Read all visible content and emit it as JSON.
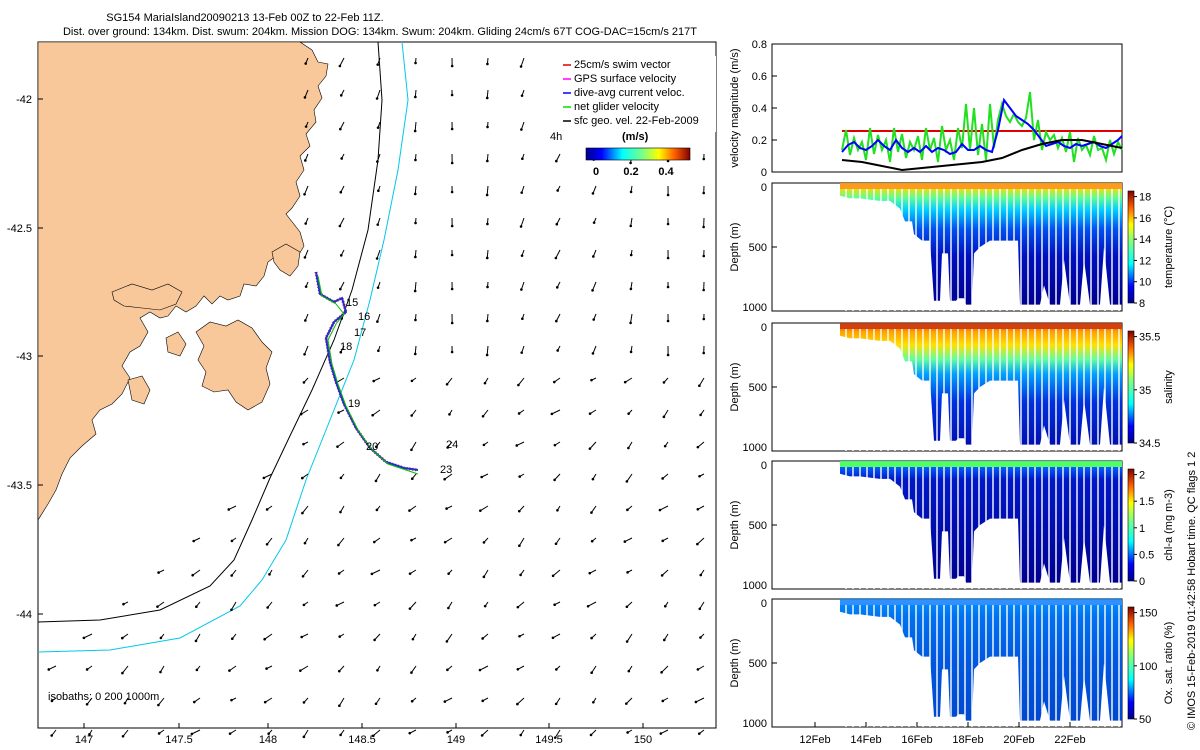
{
  "header": {
    "line1": "SG154 MariaIsland20090213 13-Feb 00Z to 22-Feb 11Z.",
    "line2": "Dist. over ground: 134km. Dist. swum: 204km. Mission DOG: 134km. Swum: 204km. Gliding 24cm/s 67T COG-DAC=15cm/s 217T"
  },
  "map": {
    "x_ticks": [
      "147",
      "147.5",
      "148",
      "148.5",
      "149",
      "149.5",
      "150"
    ],
    "y_ticks": [
      "-42",
      "-42.5",
      "-43",
      "-43.5",
      "-44"
    ],
    "day_labels": [
      "15",
      "16",
      "17",
      "18",
      "19",
      "20",
      "24",
      "23"
    ],
    "isobaths_label": "isobaths: 0   200  1000m",
    "colors": {
      "land": "#f8c89a",
      "iso200": "#000000",
      "iso1000": "#00c8e8",
      "track": "#2030d0",
      "swim": "#e00000"
    },
    "legend": {
      "items": [
        {
          "label": "25cm/s swim vector",
          "color": "#e00000"
        },
        {
          "label": "GPS surface velocity",
          "color": "#ff00ff"
        },
        {
          "label": "dive-avg current veloc.",
          "color": "#0000ff"
        },
        {
          "label": "net glider velocity",
          "color": "#00e000"
        },
        {
          "label": "sfc geo. vel. 22-Feb-2009",
          "color": "#000000"
        }
      ],
      "scale_label": "4h",
      "units": "(m/s)",
      "cb_ticks": [
        "0",
        "0.2",
        "0.4"
      ]
    }
  },
  "velocity_panel": {
    "ylabel": "velocity magnitude (m/s)",
    "y_ticks": [
      "0",
      "0.2",
      "0.4",
      "0.6",
      "0.8"
    ]
  },
  "sections": [
    {
      "label": "temperature (°C)",
      "cb_ticks": [
        "8",
        "10",
        "12",
        "14",
        "16",
        "18"
      ]
    },
    {
      "label": "salinity",
      "cb_ticks": [
        "34.5",
        "35",
        "35.5"
      ]
    },
    {
      "label": "chl-a (mg m-3)",
      "cb_ticks": [
        "0",
        "0.5",
        "1",
        "1.5",
        "2"
      ]
    },
    {
      "label": "Ox. sat. ratio (%)",
      "cb_ticks": [
        "50",
        "100",
        "150"
      ]
    }
  ],
  "depth_axis": {
    "ylabel": "Depth (m)",
    "ticks": [
      "0",
      "500",
      "1000"
    ]
  },
  "time_axis": {
    "ticks": [
      "12Feb",
      "14Feb",
      "16Feb",
      "18Feb",
      "20Feb",
      "22Feb"
    ]
  },
  "credit": "© IMOS 15-Feb-2019 01:42:58 Hobart time. QC flags 1  2"
}
